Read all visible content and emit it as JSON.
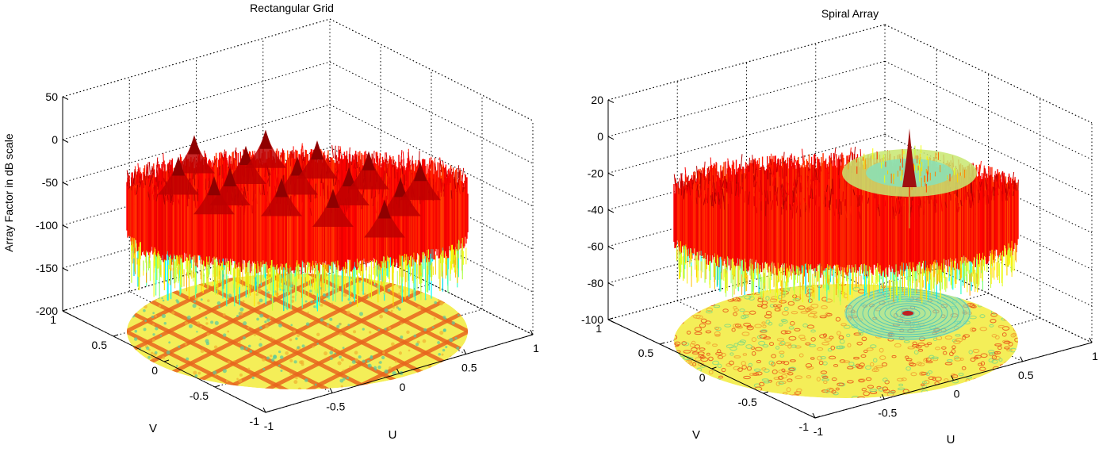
{
  "chart_data": [
    {
      "type": "surface",
      "title": "Rectangular Grid",
      "xlabel": "U",
      "ylabel": "V",
      "zlabel": "Array Factor in dB scale",
      "xlim": [
        -1,
        1
      ],
      "ylim": [
        -1,
        1
      ],
      "zlim": [
        -200,
        50
      ],
      "xticks": [
        "-1",
        "-0.5",
        "0",
        "0.5",
        "1"
      ],
      "yticks": [
        "-1",
        "-0.5",
        "0",
        "0.5",
        "1"
      ],
      "zticks": [
        "-200",
        "-150",
        "-100",
        "-50",
        "0",
        "50"
      ],
      "grid": true,
      "colormap": [
        "#00008f",
        "#00ffff",
        "#ffff00",
        "#ff0000",
        "#800000"
      ],
      "pattern": "periodic grating lobes",
      "peak_db": 0,
      "floor_contour": true
    },
    {
      "type": "surface",
      "title": "Spiral Array",
      "xlabel": "U",
      "ylabel": "V",
      "zlabel": "",
      "xlim": [
        -1,
        1
      ],
      "ylim": [
        -1,
        1
      ],
      "zlim": [
        -100,
        20
      ],
      "xticks": [
        "-1",
        "-0.5",
        "0",
        "0.5",
        "1"
      ],
      "yticks": [
        "-1",
        "-0.5",
        "0",
        "0.5",
        "1"
      ],
      "zticks": [
        "-100",
        "-80",
        "-60",
        "-40",
        "-20",
        "0",
        "20"
      ],
      "grid": true,
      "colormap": [
        "#00008f",
        "#00ffff",
        "#ffff00",
        "#ff0000",
        "#800000"
      ],
      "pattern": "single main lobe with ring of sidelobes",
      "peak_db": 0,
      "floor_contour": true
    }
  ]
}
